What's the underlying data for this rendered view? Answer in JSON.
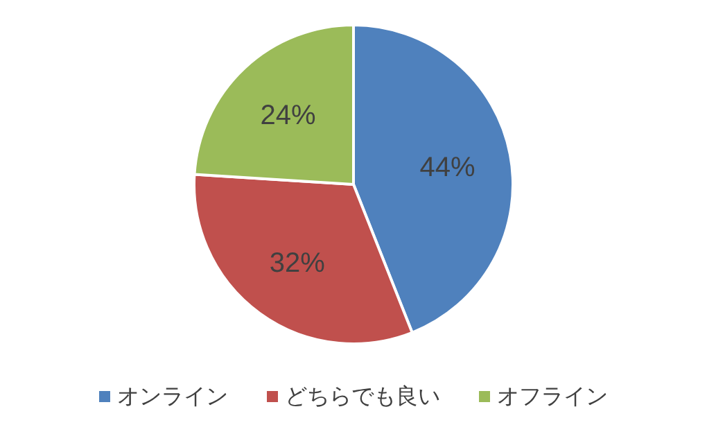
{
  "chart_data": {
    "type": "pie",
    "categories": [
      "オンライン",
      "どちらでも良い",
      "オフライン"
    ],
    "values": [
      44,
      32,
      24
    ],
    "colors": [
      "#4f81bd",
      "#c0504d",
      "#9bbb59"
    ],
    "value_labels": [
      "44%",
      "32%",
      "24%"
    ],
    "legend": "bottom"
  }
}
